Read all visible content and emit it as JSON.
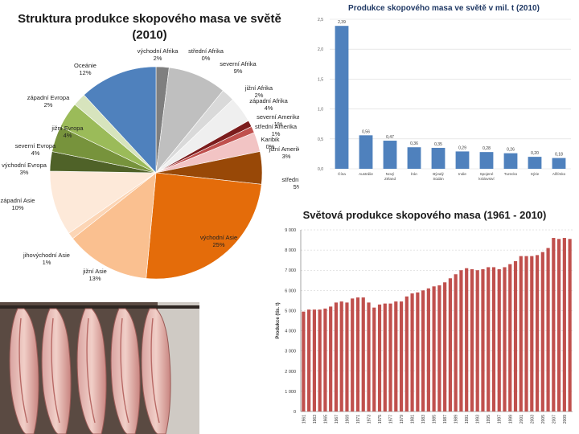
{
  "chart_data": [
    {
      "type": "pie",
      "title_line1": "Struktura produkce skopového masa ve světě",
      "title_line2": "(2010)",
      "slices": [
        {
          "name": "východní Afrika",
          "value": 2,
          "label": "2%",
          "color": "#7f7f7f"
        },
        {
          "name": "střední Afrika",
          "value": 0,
          "label": "0%",
          "color": "#a6a6a6"
        },
        {
          "name": "severní Afrika",
          "value": 9,
          "label": "9%",
          "color": "#bfbfbf"
        },
        {
          "name": "jižní Afrika",
          "value": 2,
          "label": "2%",
          "color": "#d9d9d9"
        },
        {
          "name": "západní Afrika",
          "value": 4,
          "label": "4%",
          "color": "#efefef"
        },
        {
          "name": "severní Amerika",
          "value": 1,
          "label": "1%",
          "color": "#7b1c1c"
        },
        {
          "name": "střední Amerika",
          "value": 1,
          "label": "1%",
          "color": "#c0504d"
        },
        {
          "name": "Karibik",
          "value": 0,
          "label": "0%",
          "color": "#e6b9b8"
        },
        {
          "name": "jižní Amerika",
          "value": 3,
          "label": "3%",
          "color": "#f2c4c4"
        },
        {
          "name": "střední Asie",
          "value": 5,
          "label": "5%",
          "color": "#984807"
        },
        {
          "name": "východní Asie",
          "value": 25,
          "label": "25%",
          "color": "#e46c0a"
        },
        {
          "name": "jižní Asie",
          "value": 13,
          "label": "13%",
          "color": "#fac090"
        },
        {
          "name": "jihovýchodní Asie",
          "value": 1,
          "label": "1%",
          "color": "#fcd5b5"
        },
        {
          "name": "západní Asie",
          "value": 10,
          "label": "10%",
          "color": "#fde9d9"
        },
        {
          "name": "východní Evropa",
          "value": 3,
          "label": "3%",
          "color": "#4f6228"
        },
        {
          "name": "severní Evropa",
          "value": 4,
          "label": "4%",
          "color": "#77933c"
        },
        {
          "name": "jižní Evropa",
          "value": 4,
          "label": "4%",
          "color": "#9bbb59"
        },
        {
          "name": "západní Evropa",
          "value": 2,
          "label": "2%",
          "color": "#d7e4bd"
        },
        {
          "name": "Oceánie",
          "value": 12,
          "label": "12%",
          "color": "#4f81bd"
        }
      ]
    },
    {
      "type": "bar",
      "title": "Produkce skopového masa ve světě v mil. t (2010)",
      "categories": [
        "Čína",
        "Austrálie",
        "Nový Zéland",
        "Írán",
        "Bývalý Súdán",
        "Indie",
        "Spojené království",
        "Turecko",
        "Sýrie",
        "Alžírsko"
      ],
      "values": [
        2.39,
        0.56,
        0.47,
        0.36,
        0.35,
        0.29,
        0.28,
        0.26,
        0.2,
        0.18
      ],
      "value_labels": [
        "2,39",
        "0,56",
        "0,47",
        "0,36",
        "0,35",
        "0,29",
        "0,28",
        "0,26",
        "0,20",
        "0,18"
      ],
      "yticks": [
        "0,0",
        "0,5",
        "1,0",
        "1,5",
        "2,0",
        "2,5"
      ],
      "ylim": [
        0,
        2.5
      ],
      "color": "#4f81bd"
    },
    {
      "type": "bar",
      "title": "Světová produkce skopového masa (1961 - 2010)",
      "ylabel": "Produkce (tis. t)",
      "ylim": [
        0,
        9000
      ],
      "yticks": [
        "0",
        "1 000",
        "2 000",
        "3 000",
        "4 000",
        "5 000",
        "6 000",
        "7 000",
        "8 000",
        "9 000"
      ],
      "xtick_labels": [
        "1961",
        "1963",
        "1965",
        "1967",
        "1969",
        "1971",
        "1973",
        "1975",
        "1977",
        "1979",
        "1981",
        "1983",
        "1985",
        "1987",
        "1989",
        "1991",
        "1993",
        "1995",
        "1997",
        "1999",
        "2001",
        "2003",
        "2005",
        "2007",
        "2009"
      ],
      "years": [
        1961,
        1962,
        1963,
        1964,
        1965,
        1966,
        1967,
        1968,
        1969,
        1970,
        1971,
        1972,
        1973,
        1974,
        1975,
        1976,
        1977,
        1978,
        1979,
        1980,
        1981,
        1982,
        1983,
        1984,
        1985,
        1986,
        1987,
        1988,
        1989,
        1990,
        1991,
        1992,
        1993,
        1994,
        1995,
        1996,
        1997,
        1998,
        1999,
        2000,
        2001,
        2002,
        2003,
        2004,
        2005,
        2006,
        2007,
        2008,
        2009,
        2010
      ],
      "values": [
        4950,
        5050,
        5050,
        5050,
        5100,
        5200,
        5400,
        5450,
        5400,
        5600,
        5650,
        5650,
        5400,
        5150,
        5300,
        5350,
        5350,
        5450,
        5450,
        5700,
        5850,
        5900,
        6000,
        6100,
        6200,
        6250,
        6400,
        6600,
        6800,
        7000,
        7100,
        7050,
        7000,
        7050,
        7150,
        7150,
        7050,
        7150,
        7300,
        7450,
        7700,
        7700,
        7700,
        7750,
        7900,
        8100,
        8600,
        8550,
        8600,
        8550
      ],
      "color": "#c0504d"
    }
  ],
  "photo": {
    "description_icon": "sheep-carcasses-photo"
  }
}
